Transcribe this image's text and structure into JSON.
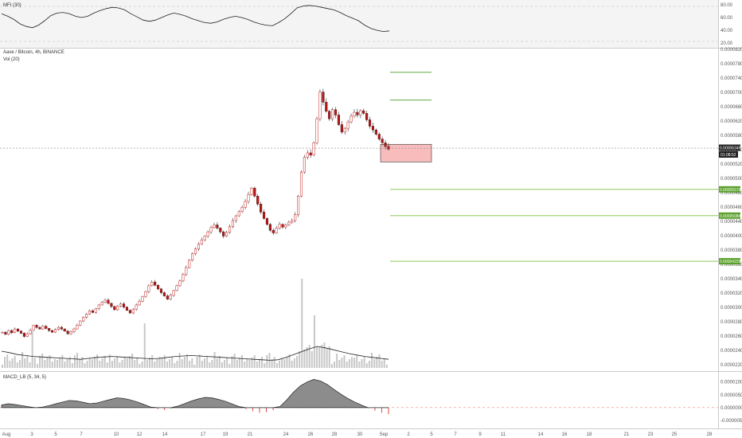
{
  "chart_data": {
    "type": "candlestick",
    "symbol_title": "Aave / Bitcoin, 4h, BINANCE",
    "volume_label": "Vol (20)",
    "mfi_label": "MFI (30)",
    "macd_label": "MACD_LB (5, 34, 5)",
    "price_axis_labels": [
      "0.00008200",
      "0.00007800",
      "0.00007400",
      "0.00007000",
      "0.00006600",
      "0.00006200",
      "0.00005800",
      "0.00005400",
      "0.00005200",
      "0.00005000",
      "0.00004800",
      "0.00004600",
      "0.00004400",
      "0.00004000",
      "0.00003800",
      "0.00003600",
      "0.00003400",
      "0.00003200",
      "0.00003000",
      "0.00002800",
      "0.00002600",
      "0.00002400",
      "0.00002200"
    ],
    "ylim": [
      2.2e-05,
      8.2e-05
    ],
    "mfi_axis_labels": [
      "80.00",
      "60.00",
      "40.00",
      "20.00"
    ],
    "mfi_ylim": [
      15,
      85
    ],
    "macd_axis_labels": [
      "0.00001000",
      "0.00000500",
      "0.00000000",
      "-0.00000500"
    ],
    "macd_ylim": [
      -7.5e-06,
      1.3e-05
    ],
    "x_tick_labels": [
      "Aug",
      "3",
      "5",
      "7",
      "10",
      "12",
      "14",
      "17",
      "19",
      "21",
      "24",
      "26",
      "28",
      "30",
      "Sep",
      "2",
      "5",
      "7",
      "9",
      "11",
      "14",
      "16",
      "18",
      "21",
      "23",
      "25",
      "28"
    ],
    "current_price": "0.00006349",
    "countdown": "01:08:52",
    "current_price_value": 6.349e-05,
    "horizontal_levels": [
      {
        "price": 7.77e-05,
        "label": ""
      },
      {
        "price": 7.25e-05,
        "label": ""
      },
      {
        "price": 5.576e-05,
        "label": "0.00005576"
      },
      {
        "price": 5.084e-05,
        "label": "0.00005084"
      },
      {
        "price": 4.229e-05,
        "label": "0.00004229"
      }
    ],
    "zone": {
      "top": 6.42e-05,
      "bottom": 6.09e-05
    },
    "close_series": [
      2.9e-05,
      2.86e-05,
      2.93e-05,
      2.89e-05,
      2.96e-05,
      2.92e-05,
      2.88e-05,
      2.82e-05,
      2.87e-05,
      2.94e-05,
      3.03e-05,
      2.99e-05,
      2.96e-05,
      3.01e-05,
      2.97e-05,
      2.93e-05,
      2.9e-05,
      2.95e-05,
      2.99e-05,
      2.96e-05,
      2.92e-05,
      2.87e-05,
      2.91e-05,
      2.96e-05,
      3.03e-05,
      3.11e-05,
      3.18e-05,
      3.24e-05,
      3.3e-05,
      3.27e-05,
      3.34e-05,
      3.41e-05,
      3.46e-05,
      3.5e-05,
      3.44e-05,
      3.38e-05,
      3.32e-05,
      3.39e-05,
      3.43e-05,
      3.37e-05,
      3.31e-05,
      3.26e-05,
      3.33e-05,
      3.41e-05,
      3.48e-05,
      3.57e-05,
      3.66e-05,
      3.77e-05,
      3.84e-05,
      3.78e-05,
      3.71e-05,
      3.64e-05,
      3.58e-05,
      3.52e-05,
      3.59e-05,
      3.68e-05,
      3.77e-05,
      3.86e-05,
      3.98e-05,
      4.11e-05,
      4.25e-05,
      4.37e-05,
      4.46e-05,
      4.55e-05,
      4.63e-05,
      4.7e-05,
      4.78e-05,
      4.86e-05,
      4.91e-05,
      4.85e-05,
      4.78e-05,
      4.7e-05,
      4.77e-05,
      4.88e-05,
      4.99e-05,
      5.08e-05,
      5.16e-05,
      5.24e-05,
      5.35e-05,
      5.48e-05,
      5.6e-05,
      5.45e-05,
      5.3e-05,
      5.15e-05,
      5.03e-05,
      4.92e-05,
      4.81e-05,
      4.76e-05,
      4.85e-05,
      4.92e-05,
      4.87e-05,
      4.91e-05,
      4.96e-05,
      4.99e-05,
      5.1e-05,
      5.45e-05,
      5.9e-05,
      6.18e-05,
      6.26e-05,
      6.22e-05,
      6.45e-05,
      6.9e-05,
      7.4e-05,
      7.21e-05,
      7.04e-05,
      6.9e-05,
      7.07e-05,
      6.97e-05,
      6.79e-05,
      6.65e-05,
      6.72e-05,
      6.84e-05,
      6.95e-05,
      7.02e-05,
      6.97e-05,
      7.05e-05,
      7e-05,
      6.88e-05,
      6.76e-05,
      6.69e-05,
      6.61e-05,
      6.52e-05,
      6.45e-05,
      6.38e-05,
      6.33e-05
    ],
    "mfi_series": [
      66,
      62,
      57,
      50,
      46,
      44,
      48,
      55,
      63,
      67,
      68,
      66,
      62,
      60,
      62,
      67,
      71,
      74,
      76,
      75,
      72,
      66,
      61,
      56,
      54,
      56,
      60,
      64,
      67,
      65,
      62,
      58,
      55,
      52,
      51,
      53,
      57,
      60,
      62,
      60,
      57,
      53,
      50,
      48,
      47,
      52,
      58,
      66,
      75,
      78,
      79,
      78,
      76,
      74,
      72,
      68,
      63,
      59,
      55,
      48,
      43,
      40,
      38,
      39
    ],
    "volume_ma_series": [
      0.35,
      0.32,
      0.28,
      0.26,
      0.24,
      0.23,
      0.22,
      0.21,
      0.2,
      0.19,
      0.18,
      0.2,
      0.22,
      0.23,
      0.24,
      0.23,
      0.22,
      0.21,
      0.2,
      0.19,
      0.2,
      0.22,
      0.24,
      0.25,
      0.26,
      0.25,
      0.24,
      0.23,
      0.22,
      0.21,
      0.2,
      0.19,
      0.18,
      0.17,
      0.16,
      0.17,
      0.22,
      0.28,
      0.34,
      0.4,
      0.45,
      0.42,
      0.38,
      0.34,
      0.3,
      0.27,
      0.24,
      0.22,
      0.2,
      0.18
    ],
    "macd_hist_series": [
      1e-06,
      1.5e-06,
      1.2e-06,
      8e-07,
      3e-07,
      -2e-07,
      2e-07,
      8e-07,
      1.5e-06,
      2.2e-06,
      2.8e-06,
      2.6e-06,
      2.1e-06,
      1.5e-06,
      1.8e-06,
      2.5e-06,
      3.2e-06,
      3.8e-06,
      3.6e-06,
      3e-06,
      2.2e-06,
      1.2e-06,
      2e-07,
      -6e-07,
      -1e-06,
      -4e-07,
      6e-07,
      1.6e-06,
      2.6e-06,
      3.4e-06,
      4e-06,
      3.8e-06,
      3.2e-06,
      2.4e-06,
      1.4e-06,
      4e-07,
      -6e-07,
      -1.4e-06,
      -2e-06,
      -1.8e-06,
      -1e-06,
      4e-07,
      3e-06,
      6e-06,
      8.5e-06,
      1e-05,
      1.1e-05,
      1.04e-05,
      9e-06,
      7e-06,
      5.2e-06,
      3.6e-06,
      2.2e-06,
      1e-06,
      -2e-07,
      -1.2e-06,
      -2e-06,
      -2.6e-06
    ]
  }
}
